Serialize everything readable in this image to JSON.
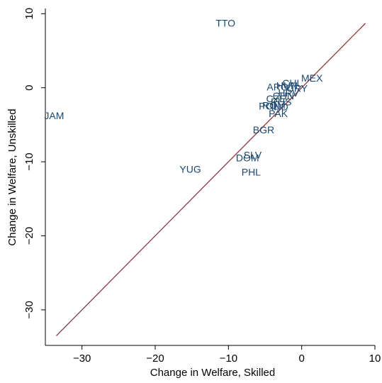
{
  "chart_data": {
    "type": "scatter",
    "x_label": "Change in Welfare, Skilled",
    "y_label": "Change in Welfare, Unskilled",
    "xlim": [
      -35,
      10
    ],
    "ylim": [
      -34.8,
      10.7
    ],
    "xticks": [
      {
        "value": -30,
        "label": "−30"
      },
      {
        "value": -20,
        "label": "−20"
      },
      {
        "value": -10,
        "label": "−10"
      },
      0,
      10
    ],
    "yticks": [
      {
        "value": -30,
        "label": "−30"
      },
      {
        "value": -20,
        "label": "−20"
      },
      {
        "value": -10,
        "label": "−10"
      },
      0,
      10
    ],
    "grid": false,
    "series": [
      {
        "color": "#1a476f",
        "labels": [
          "TTO",
          "JAM",
          "BGR",
          "SLV",
          "DOM",
          "YUG",
          "PHL",
          "MEX",
          "ARG",
          "HUN",
          "CHL",
          "URY",
          "CZE",
          "POL",
          "ROM",
          "RUS",
          "IND",
          "PAK",
          "CHN",
          "HRV"
        ],
        "x": [
          -10.4,
          -33.8,
          -5.2,
          -6.7,
          -7.4,
          -15.2,
          -6.9,
          1.4,
          -3.3,
          -2.0,
          -1.3,
          -0.6,
          -3.5,
          -4.5,
          -3.8,
          -2.8,
          -3.0,
          -3.2,
          -2.5,
          -1.8
        ],
        "y": [
          8.6,
          -3.9,
          -5.8,
          -9.2,
          -9.6,
          -11.1,
          -11.5,
          1.2,
          0.0,
          0.2,
          0.5,
          -0.2,
          -1.6,
          -2.6,
          -2.5,
          -2.0,
          -2.7,
          -3.6,
          -1.2,
          -0.8
        ]
      }
    ],
    "fit_line": {
      "color": "#90353b",
      "x": [
        -33.5,
        8.7
      ],
      "y": [
        -33.5,
        8.7
      ]
    }
  }
}
